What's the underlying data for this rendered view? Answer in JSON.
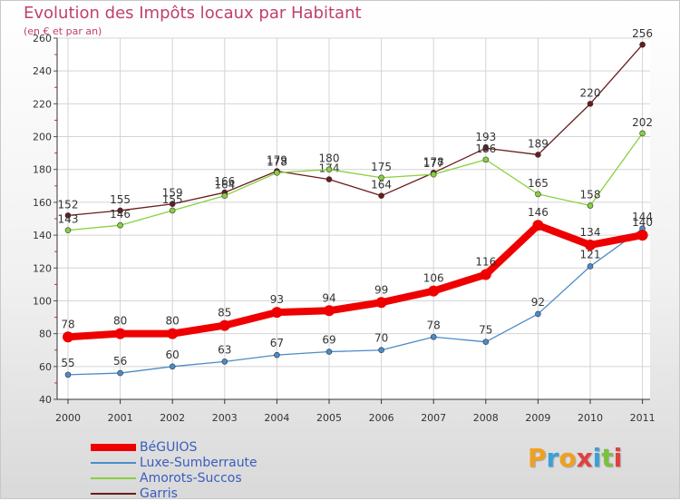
{
  "title": "Evolution des Impôts locaux par Habitant",
  "subtitle": "(en € et par an)",
  "logo": {
    "letters": [
      "P",
      "r",
      "o",
      "x",
      "i",
      "t",
      "i"
    ],
    "colors": [
      "#f0a020",
      "#3aa0d8",
      "#f0a020",
      "#e04040",
      "#3aa0d8",
      "#7cc040",
      "#e04040"
    ]
  },
  "chart_data": {
    "type": "line",
    "x": [
      "2000",
      "2001",
      "2002",
      "2003",
      "2004",
      "2005",
      "2006",
      "2007",
      "2008",
      "2009",
      "2010",
      "2011"
    ],
    "ylim": [
      40,
      260
    ],
    "yticks": [
      "40",
      "60",
      "80",
      "100",
      "120",
      "140",
      "160",
      "180",
      "200",
      "220",
      "240",
      "260"
    ],
    "grid": true,
    "legend_position": "bottom-left",
    "series": [
      {
        "name": "BéGUIOS",
        "color": "#ee0000",
        "values": [
          78,
          80,
          80,
          85,
          93,
          94,
          99,
          106,
          116,
          146,
          134,
          140
        ],
        "labels": [
          "78",
          "80",
          "80",
          "85",
          "93",
          "94",
          "99",
          "106",
          "116",
          "146",
          "134",
          "140"
        ]
      },
      {
        "name": "Luxe-Sumberraute",
        "color": "#4a8cc8",
        "values": [
          55,
          56,
          60,
          63,
          67,
          69,
          70,
          78,
          75,
          92,
          121,
          144
        ],
        "labels": [
          "55",
          "56",
          "60",
          "63",
          "67",
          "69",
          "70",
          "78",
          "75",
          "92",
          "121",
          "144"
        ]
      },
      {
        "name": "Amorots-Succos",
        "color": "#88d040",
        "values": [
          143,
          146,
          155,
          164,
          178,
          180,
          175,
          177,
          186,
          165,
          158,
          202
        ],
        "labels": [
          "143",
          "146",
          "155",
          "164",
          "178",
          "180",
          "175",
          "177",
          "186",
          "165",
          "158",
          "202"
        ]
      },
      {
        "name": "Garris",
        "color": "#6a1c1c",
        "values": [
          152,
          155,
          159,
          166,
          179,
          174,
          164,
          178,
          193,
          189,
          220,
          256
        ],
        "labels": [
          "152",
          "155",
          "159",
          "166",
          "179",
          "174",
          "164",
          "178",
          "193",
          "189",
          "220",
          "256"
        ]
      }
    ]
  }
}
